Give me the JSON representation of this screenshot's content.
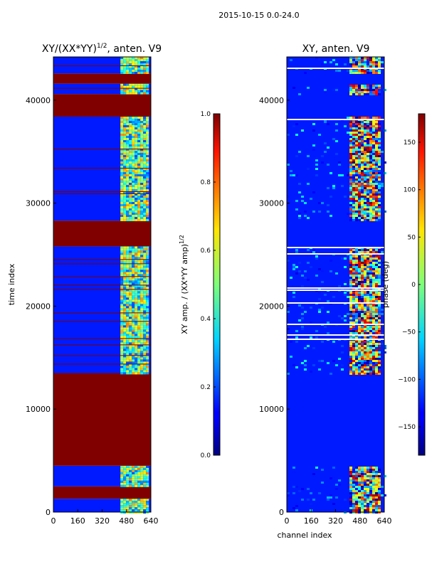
{
  "figure": {
    "suptitle": "2015-10-15 0.0-24.0",
    "xlabel": "channel index"
  },
  "chart_data": [
    {
      "type": "heatmap",
      "title": "XY/(XX*YY)^{1/2}, anten. V9",
      "title_base": "XY/(XX*YY)",
      "title_exp": "1/2",
      "title_tail": ", anten. V9",
      "xlabel": "",
      "ylabel": "time index",
      "xlim": [
        0,
        640
      ],
      "ylim": [
        0,
        44200
      ],
      "xticks": [
        0,
        160,
        320,
        480,
        640
      ],
      "yticks": [
        0,
        10000,
        20000,
        30000,
        40000
      ],
      "colorbar": {
        "label": "XY amp. / (XX*YY amp)^{1/2}",
        "label_base": "XY amp. / (XX*YY amp)",
        "label_exp": "1/2",
        "range": [
          0.0,
          1.0
        ],
        "ticks": [
          "0.0",
          "0.2",
          "0.4",
          "0.6",
          "0.8",
          "1.0"
        ],
        "colormap": "jet"
      },
      "bands": [
        {
          "from": 0,
          "to": 1300,
          "kind": "data",
          "value": 0.15
        },
        {
          "from": 1300,
          "to": 2500,
          "kind": "flag",
          "value": 1.0
        },
        {
          "from": 2500,
          "to": 4500,
          "kind": "data",
          "value": 0.15
        },
        {
          "from": 4500,
          "to": 13500,
          "kind": "flag",
          "value": 1.0
        },
        {
          "from": 13500,
          "to": 25800,
          "kind": "data",
          "value": 0.15
        },
        {
          "from": 25800,
          "to": 28300,
          "kind": "flag",
          "value": 1.0
        },
        {
          "from": 28300,
          "to": 38400,
          "kind": "data",
          "value": 0.15
        },
        {
          "from": 38400,
          "to": 40600,
          "kind": "flag",
          "value": 1.0
        },
        {
          "from": 40600,
          "to": 41600,
          "kind": "data",
          "value": 0.15
        },
        {
          "from": 41600,
          "to": 42600,
          "kind": "flag",
          "value": 1.0
        },
        {
          "from": 42600,
          "to": 44200,
          "kind": "data",
          "value": 0.15
        }
      ],
      "active_channels": [
        440,
        620
      ]
    },
    {
      "type": "heatmap",
      "title": "XY, anten. V9",
      "xlabel": "channel index",
      "ylabel": "",
      "xlim": [
        0,
        640
      ],
      "ylim": [
        0,
        44200
      ],
      "xticks": [
        0,
        160,
        320,
        480,
        640
      ],
      "yticks": [
        0,
        10000,
        20000,
        30000,
        40000
      ],
      "colorbar": {
        "label": "phase (deg)",
        "range": [
          -180,
          180
        ],
        "ticks": [
          "150",
          "100",
          "50",
          "0",
          "−50",
          "−100",
          "−150"
        ],
        "colormap": "jet"
      },
      "active_channels": [
        400,
        600
      ]
    }
  ]
}
